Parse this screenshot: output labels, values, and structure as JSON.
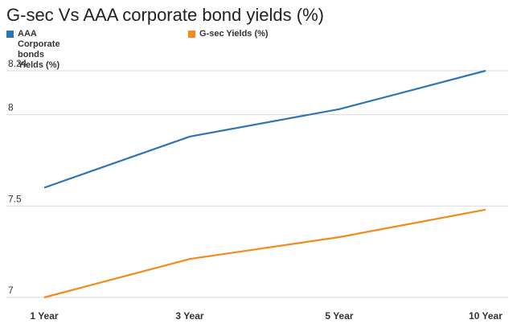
{
  "chart_data": {
    "type": "line",
    "title": "G-sec Vs AAA corporate bond yields (%)",
    "categories": [
      "1 Year",
      "3 Year",
      "5 Year",
      "10 Year"
    ],
    "series": [
      {
        "name": "AAA Corporate bonds Yields (%)",
        "color": "#2e75b6",
        "values": [
          7.6,
          7.88,
          8.03,
          8.24
        ]
      },
      {
        "name": "G-sec Yields (%)",
        "color": "#f28a1e",
        "values": [
          7.0,
          7.21,
          7.33,
          7.48
        ]
      }
    ],
    "yticks": [
      "8.24",
      "8",
      "7.5",
      "7"
    ],
    "ylim": [
      7,
      8.24
    ],
    "grid": true,
    "legend_position": "top-left"
  }
}
